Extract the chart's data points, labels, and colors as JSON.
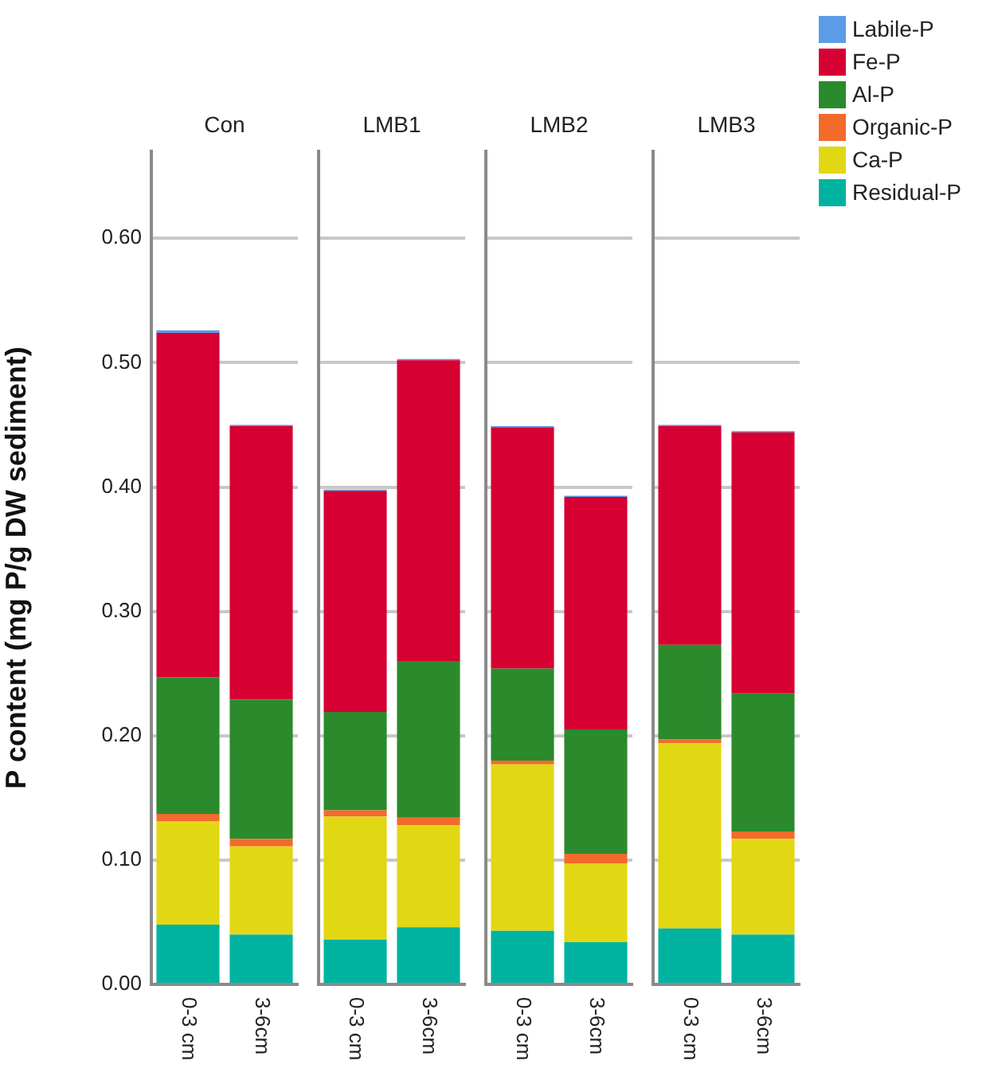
{
  "chart_data": [
    {
      "type": "bar",
      "title": "Con",
      "ylabel": "P content (mg P/g DW sediment)",
      "categories": [
        "0-3 cm",
        "3-6cm"
      ],
      "stacked": true,
      "grid": "y",
      "ylim": [
        0,
        0.67
      ],
      "yticks": [
        {
          "value": 0,
          "label": "0.00"
        },
        {
          "value": 0.1,
          "label": "0.10"
        },
        {
          "value": 0.2,
          "label": "0.20"
        },
        {
          "value": 0.3,
          "label": "0.30"
        },
        {
          "value": 0.4,
          "label": "0.40"
        },
        {
          "value": 0.5,
          "label": "0.50"
        },
        {
          "value": 0.6,
          "label": "0.60"
        }
      ],
      "series": [
        {
          "color": "#00b3a0",
          "values": [
            0.048,
            0.04
          ]
        },
        {
          "color": "#e2d713",
          "values": [
            0.083,
            0.071
          ]
        },
        {
          "color": "#f26b2b",
          "values": [
            0.006,
            0.006
          ]
        },
        {
          "color": "#2a8a2c",
          "values": [
            0.11,
            0.112
          ]
        },
        {
          "color": "#d60033",
          "values": [
            0.277,
            0.22
          ]
        },
        {
          "color": "#5b9be8",
          "values": [
            0.002,
            0.001
          ]
        }
      ]
    },
    {
      "type": "bar",
      "title": "LMB1",
      "categories": [
        "0-3 cm",
        "3-6cm"
      ],
      "stacked": true,
      "grid": "y",
      "tick_labels": "x",
      "ylim": [
        0,
        0.67
      ],
      "yticks": [
        0,
        0.1,
        0.2,
        0.3,
        0.4,
        0.5,
        0.6
      ],
      "series": [
        {
          "color": "#00b3a0",
          "values": [
            0.036,
            0.046
          ]
        },
        {
          "color": "#e2d713",
          "values": [
            0.099,
            0.082
          ]
        },
        {
          "color": "#f26b2b",
          "values": [
            0.005,
            0.006
          ]
        },
        {
          "color": "#2a8a2c",
          "values": [
            0.079,
            0.126
          ]
        },
        {
          "color": "#d60033",
          "values": [
            0.178,
            0.242
          ]
        },
        {
          "color": "#5b9be8",
          "values": [
            0.001,
            0.001
          ]
        }
      ]
    },
    {
      "type": "bar",
      "title": "LMB2",
      "categories": [
        "0-3 cm",
        "3-6cm"
      ],
      "stacked": true,
      "grid": "y",
      "tick_labels": "x",
      "ylim": [
        0,
        0.67
      ],
      "yticks": [
        0,
        0.1,
        0.2,
        0.3,
        0.4,
        0.5,
        0.6
      ],
      "series": [
        {
          "color": "#00b3a0",
          "values": [
            0.043,
            0.034
          ]
        },
        {
          "color": "#e2d713",
          "values": [
            0.134,
            0.063
          ]
        },
        {
          "color": "#f26b2b",
          "values": [
            0.003,
            0.008
          ]
        },
        {
          "color": "#2a8a2c",
          "values": [
            0.074,
            0.1
          ]
        },
        {
          "color": "#d60033",
          "values": [
            0.194,
            0.187
          ]
        },
        {
          "color": "#5b9be8",
          "values": [
            0.001,
            0.001
          ]
        }
      ]
    },
    {
      "type": "bar",
      "title": "LMB3",
      "categories": [
        "0-3 cm",
        "3-6cm"
      ],
      "stacked": true,
      "grid": "y",
      "tick_labels": "x",
      "legend": "top right",
      "ylim": [
        0,
        0.67
      ],
      "yticks": [
        0,
        0.1,
        0.2,
        0.3,
        0.4,
        0.5,
        0.6
      ],
      "series": [
        {
          "name": "Residual-P",
          "color": "#00b3a0",
          "values": [
            0.045,
            0.04
          ]
        },
        {
          "name": "Ca-P",
          "color": "#e2d713",
          "values": [
            0.149,
            0.077
          ]
        },
        {
          "name": "Organic-P",
          "color": "#f26b2b",
          "values": [
            0.003,
            0.006
          ]
        },
        {
          "name": "Al-P",
          "color": "#2a8a2c",
          "values": [
            0.076,
            0.111
          ]
        },
        {
          "name": "Fe-P",
          "color": "#d60033",
          "values": [
            0.176,
            0.21
          ]
        },
        {
          "name": "Labile-P",
          "color": "#5b9be8",
          "values": [
            0.001,
            0.001
          ]
        }
      ]
    }
  ]
}
